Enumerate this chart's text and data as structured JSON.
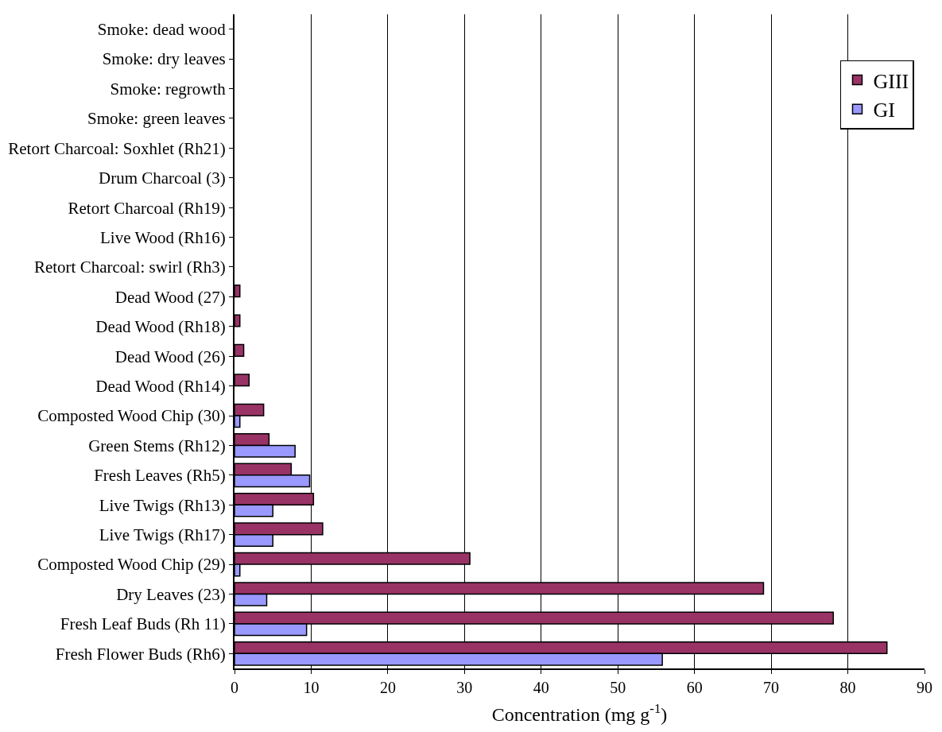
{
  "chart_data": {
    "type": "bar",
    "orientation": "horizontal",
    "xlabel": "Concentration (mg g$^{-1}$)",
    "categories": [
      "Smoke: dead wood",
      "Smoke: dry leaves",
      "Smoke: regrowth",
      "Smoke: green leaves",
      "Retort Charcoal: Soxhlet (Rh21)",
      "Drum Charcoal (3)",
      "Retort Charcoal (Rh19)",
      "Live Wood (Rh16)",
      "Retort Charcoal: swirl (Rh3)",
      "Dead Wood (27)",
      "Dead Wood (Rh18)",
      "Dead Wood (26)",
      "Dead Wood (Rh14)",
      "Composted Wood Chip (30)",
      "Green Stems (Rh12)",
      "Fresh Leaves (Rh5)",
      "Live Twigs (Rh13)",
      "Live Twigs (Rh17)",
      "Composted Wood Chip (29)",
      "Dry Leaves (23)",
      "Fresh Leaf Buds (Rh 11)",
      "Fresh Flower Buds (Rh6)"
    ],
    "series": [
      {
        "name": "GIII",
        "color": "#993366",
        "values": [
          null,
          null,
          null,
          null,
          null,
          null,
          null,
          null,
          null,
          0.7,
          0.7,
          1.2,
          1.9,
          3.8,
          4.5,
          7.4,
          10.3,
          11.5,
          30.7,
          69.0,
          78.1,
          85.1
        ]
      },
      {
        "name": "GI",
        "color": "#9999ff",
        "values": [
          null,
          null,
          null,
          null,
          null,
          null,
          null,
          null,
          null,
          null,
          null,
          null,
          null,
          0.7,
          7.9,
          9.8,
          5.0,
          5.0,
          0.7,
          4.2,
          9.4,
          55.8
        ]
      }
    ],
    "xlim": [
      0,
      90
    ],
    "xticks": [
      0,
      10,
      20,
      30,
      40,
      50,
      60,
      70,
      80,
      90
    ],
    "grid": "x",
    "legend": "top right"
  }
}
